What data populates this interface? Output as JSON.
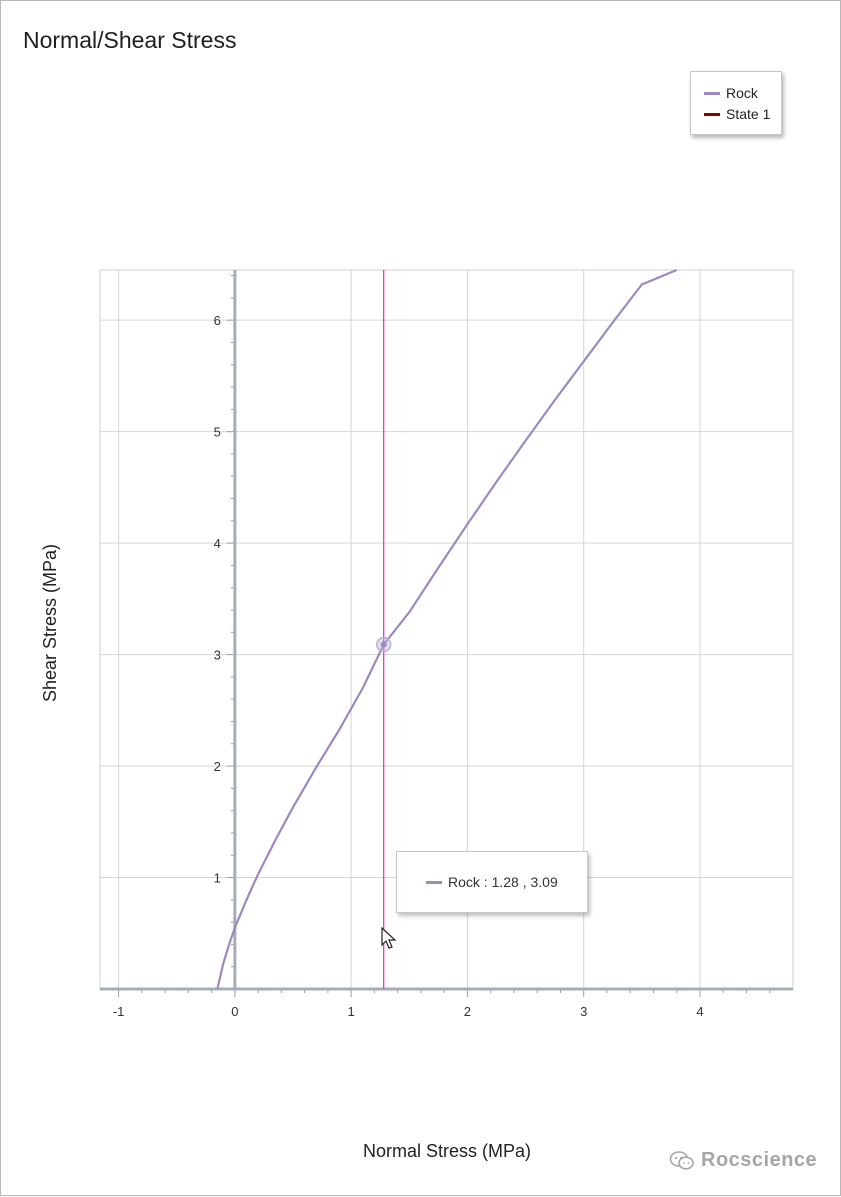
{
  "chart_data": {
    "type": "line",
    "title": "Normal/Shear Stress",
    "xlabel": "Normal Stress (MPa)",
    "ylabel": "Shear Stress (MPa)",
    "xlim": [
      -1.16,
      4.8
    ],
    "ylim": [
      0,
      6.45
    ],
    "x_ticks": [
      -1,
      0,
      1,
      2,
      3,
      4
    ],
    "x_tick_labels": [
      "-1",
      "0",
      "1",
      "2",
      "3",
      "4"
    ],
    "y_ticks": [
      1,
      2,
      3,
      4,
      5,
      6
    ],
    "y_tick_labels": [
      "1",
      "2",
      "3",
      "4",
      "5",
      "6"
    ],
    "grid": true,
    "legend_position": "top-right",
    "series": [
      {
        "name": "Rock",
        "color": "#9b89c0",
        "x": [
          -0.15,
          -0.1,
          -0.05,
          0.0,
          0.1,
          0.2,
          0.35,
          0.5,
          0.7,
          0.9,
          1.1,
          1.28,
          1.5,
          1.75,
          2.0,
          2.25,
          2.5,
          2.75,
          3.0,
          3.25,
          3.5,
          3.8
        ],
        "y": [
          0.0,
          0.23,
          0.4,
          0.55,
          0.8,
          1.03,
          1.34,
          1.63,
          1.99,
          2.33,
          2.7,
          3.09,
          3.38,
          3.78,
          4.17,
          4.55,
          4.92,
          5.28,
          5.63,
          5.98,
          6.32,
          6.45
        ]
      },
      {
        "name": "State 1",
        "color": "#8b0000",
        "x": [],
        "y": []
      }
    ],
    "cursor_line": {
      "x": 1.28,
      "color": "#e020e0"
    },
    "highlight_point": {
      "series": "Rock",
      "x": 1.28,
      "y": 3.09
    }
  },
  "legend": {
    "items": [
      {
        "label": "Rock",
        "color": "#9b89c0"
      },
      {
        "label": "State 1",
        "color": "#8b0000"
      }
    ]
  },
  "tooltip": {
    "text": "Rock : 1.28 , 3.09",
    "color": "#9b89c0"
  },
  "watermark": {
    "text": "Rocscience"
  }
}
